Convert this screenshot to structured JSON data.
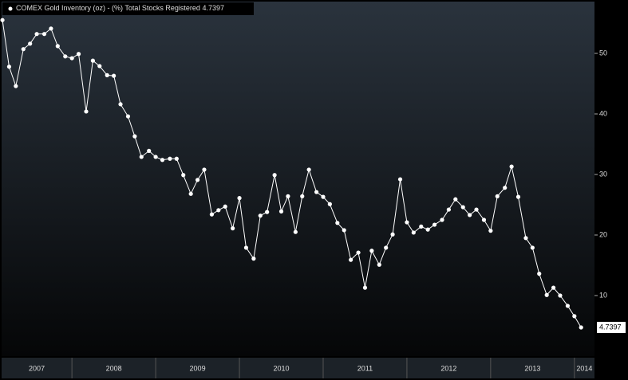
{
  "chart_data": {
    "type": "line",
    "series": [
      {
        "name": "COMEX Gold Inventory (oz) - (%) Total Stocks Registered",
        "color": "#ffffff",
        "x": [
          2007.17,
          2007.25,
          2007.33,
          2007.42,
          2007.5,
          2007.58,
          2007.67,
          2007.75,
          2007.83,
          2007.92,
          2008,
          2008.08,
          2008.17,
          2008.25,
          2008.33,
          2008.42,
          2008.5,
          2008.58,
          2008.67,
          2008.75,
          2008.83,
          2008.92,
          2009,
          2009.08,
          2009.17,
          2009.25,
          2009.33,
          2009.42,
          2009.5,
          2009.58,
          2009.67,
          2009.75,
          2009.83,
          2009.92,
          2010,
          2010.08,
          2010.17,
          2010.25,
          2010.33,
          2010.42,
          2010.5,
          2010.58,
          2010.67,
          2010.75,
          2010.83,
          2010.92,
          2011,
          2011.08,
          2011.17,
          2011.25,
          2011.33,
          2011.42,
          2011.5,
          2011.58,
          2011.67,
          2011.75,
          2011.83,
          2011.92,
          2012,
          2012.08,
          2012.17,
          2012.25,
          2012.33,
          2012.42,
          2012.5,
          2012.58,
          2012.67,
          2012.75,
          2012.83,
          2012.92,
          2013,
          2013.08,
          2013.17,
          2013.25,
          2013.33,
          2013.42,
          2013.5,
          2013.58,
          2013.67,
          2013.75,
          2013.83,
          2013.92,
          2014,
          2014.08
        ],
        "values": [
          55.5,
          47.8,
          44.6,
          50.7,
          51.6,
          53.2,
          53.2,
          54.1,
          51.2,
          49.5,
          49.2,
          49.9,
          40.4,
          48.8,
          47.9,
          46.4,
          46.3,
          41.6,
          39.6,
          36.3,
          32.9,
          33.9,
          32.9,
          32.4,
          32.6,
          32.6,
          29.9,
          26.8,
          29.1,
          30.8,
          23.4,
          24.1,
          24.7,
          21.1,
          26.1,
          17.9,
          16.1,
          23.2,
          23.8,
          29.9,
          23.9,
          26.4,
          20.5,
          26.4,
          30.8,
          27.1,
          26.3,
          25.1,
          22.0,
          20.8,
          15.9,
          17.1,
          11.3,
          17.4,
          15.1,
          17.9,
          20.1,
          29.2,
          22.1,
          20.4,
          21.4,
          20.9,
          21.7,
          22.5,
          24.2,
          25.9,
          24.6,
          23.3,
          24.2,
          22.5,
          20.7,
          26.4,
          27.8,
          31.3,
          26.3,
          19.5,
          17.9,
          13.6,
          10.1,
          11.3,
          10.0,
          8.3,
          6.6,
          4.7397
        ]
      }
    ],
    "xlim": [
      2007.16,
      2014.24
    ],
    "xticks": [
      2008,
      2009,
      2010,
      2011,
      2012,
      2013,
      2014
    ],
    "x_labels": [
      2007,
      2008,
      2009,
      2010,
      2011,
      2012,
      2013,
      2014
    ],
    "ylim": [
      0,
      57.5
    ],
    "yticks": [
      10,
      20,
      30,
      40,
      50
    ]
  }
}
